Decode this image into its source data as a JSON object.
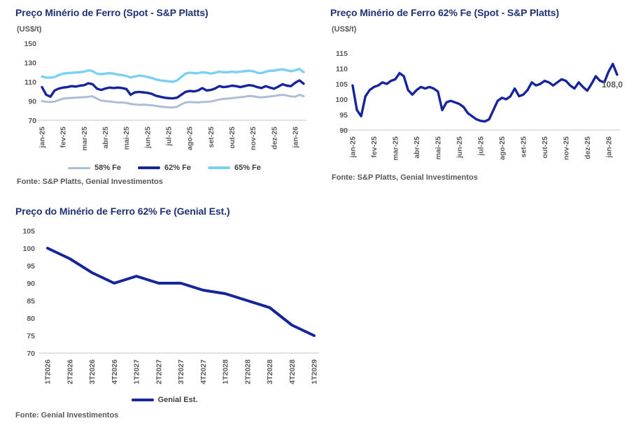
{
  "page": {
    "background": "#ffffff"
  },
  "colors": {
    "title_navy": "#1e3273",
    "axis_text": "#595959",
    "axis_line": "#d9d9d9",
    "series_58fe": "#aebdd6",
    "series_62fe": "#16259a",
    "series_65fe": "#7ed0f2"
  },
  "chart_data": [
    {
      "id": "iron-ore-spot-grades",
      "type": "line",
      "title": "Preço Minério de Ferro (Spot - S&P Platts)",
      "unit": "(US$/t)",
      "source": "Fonte: S&P Platts, Genial Investimentos",
      "ylim": [
        70,
        150
      ],
      "yticks": [
        150,
        130,
        110,
        90,
        70
      ],
      "grid": false,
      "legend_position": "bottom",
      "x_tick_every": 5,
      "categories": [
        "jan-25",
        "fev-25",
        "mar-25",
        "abr-25",
        "mai-25",
        "jun-25",
        "jul-25",
        "ago-25",
        "set-25",
        "out-25",
        "nov-25",
        "dez-25",
        "jan-26"
      ],
      "series": [
        {
          "name": "58% Fe",
          "color": "#aebdd6",
          "width": 3,
          "values": [
            90,
            89.3,
            89,
            89.5,
            91,
            92.5,
            93,
            93.3,
            93.5,
            93.8,
            94,
            94.5,
            95,
            92.5,
            90.5,
            90,
            89.5,
            89,
            88.5,
            88.5,
            88,
            87,
            86.5,
            86,
            86.3,
            86,
            85.5,
            85,
            84.3,
            83.8,
            83.5,
            83.3,
            84,
            86.5,
            88.5,
            89,
            88.7,
            88.5,
            89,
            89.2,
            89.5,
            90.5,
            91.5,
            92.3,
            92.5,
            93,
            93.5,
            94,
            94.5,
            95.3,
            95,
            94.2,
            93.8,
            94.2,
            94.8,
            95.2,
            96,
            96.5,
            95.8,
            94.8,
            94.5,
            96.5,
            95
          ]
        },
        {
          "name": "62% Fe",
          "color": "#16259a",
          "width": 3.4,
          "values": [
            104.5,
            96.5,
            94.5,
            101,
            103,
            104,
            104.5,
            105.5,
            105,
            106,
            106.5,
            108.5,
            107.5,
            103,
            101.5,
            103,
            104,
            103.5,
            104,
            103.5,
            102.5,
            96.5,
            99,
            99.5,
            99,
            98.5,
            97.5,
            95.5,
            94.5,
            93.5,
            93,
            92.8,
            93.5,
            96.5,
            99.5,
            100.5,
            100,
            101,
            103.5,
            101,
            101.5,
            103,
            105.5,
            104.5,
            105,
            106,
            105.5,
            104.5,
            105.5,
            106.5,
            106,
            104.5,
            103.5,
            105.5,
            104,
            102.8,
            105,
            107.5,
            106,
            105.5,
            109,
            111.5,
            108
          ]
        },
        {
          "name": "65% Fe",
          "color": "#7ed0f2",
          "width": 3.4,
          "values": [
            115.5,
            114.5,
            114.3,
            115,
            117,
            118.5,
            119,
            119.3,
            119.8,
            120,
            120.5,
            122,
            121,
            118.5,
            118,
            118.5,
            119,
            118.5,
            117.5,
            117,
            116,
            114.5,
            115.5,
            116.5,
            116,
            115,
            114,
            112.5,
            111.5,
            111,
            110.5,
            110,
            111.5,
            115,
            118.5,
            119.5,
            119,
            119,
            120,
            119.5,
            118.5,
            119.5,
            120.5,
            120,
            120,
            120.5,
            120,
            120.5,
            121,
            121.5,
            121,
            119.5,
            119,
            120.5,
            121.5,
            121.5,
            122.5,
            123,
            122,
            121,
            122,
            123.5,
            120
          ]
        }
      ]
    },
    {
      "id": "iron-ore-62fe-spot",
      "type": "line",
      "title": "Preço Minério de Ferro 62% Fe (Spot - S&P Platts)",
      "unit": "(US$/t)",
      "source": "Fonte: S&P Platts, Genial Investimentos",
      "ylim": [
        90,
        115
      ],
      "yticks": [
        115,
        110,
        105,
        100,
        95,
        90
      ],
      "grid": false,
      "legend_position": "none",
      "x_tick_every": 5,
      "annotation": {
        "text": "108,0"
      },
      "categories": [
        "jan-25",
        "fev-25",
        "mar-25",
        "abr-25",
        "mai-25",
        "jun-25",
        "jul-25",
        "ago-25",
        "set-25",
        "out-25",
        "nov-25",
        "dez-25",
        "jan-26"
      ],
      "series": [
        {
          "name": "62% Fe",
          "color": "#16259a",
          "width": 3.4,
          "values": [
            104.5,
            96.5,
            94.5,
            101,
            103,
            104,
            104.5,
            105.5,
            105,
            106,
            106.5,
            108.5,
            107.5,
            103,
            101.5,
            103,
            104,
            103.5,
            104,
            103.5,
            102.5,
            96.5,
            99,
            99.5,
            99,
            98.5,
            97.5,
            95.5,
            94.5,
            93.5,
            93,
            92.8,
            93.5,
            96.5,
            99.5,
            100.5,
            100,
            101,
            103.5,
            101,
            101.5,
            103,
            105.5,
            104.5,
            105,
            106,
            105.5,
            104.5,
            105.5,
            106.5,
            106,
            104.5,
            103.5,
            105.5,
            104,
            102.8,
            105,
            107.5,
            106,
            105.5,
            109,
            111.5,
            108
          ]
        }
      ]
    },
    {
      "id": "iron-ore-62fe-genial-estimate",
      "type": "line",
      "title": "Preço do Minério de Ferro 62% Fe (Genial Est.)",
      "unit": "",
      "source": "Fonte: Genial Investimentos",
      "ylim": [
        70,
        105
      ],
      "yticks": [
        105,
        100,
        95,
        90,
        85,
        80,
        75,
        70
      ],
      "grid": false,
      "legend_position": "bottom",
      "x_tick_every": 1,
      "categories": [
        "1T2026",
        "2T2026",
        "3T2026",
        "4T2026",
        "1T2027",
        "2T2027",
        "3T2027",
        "4T2027",
        "1T2028",
        "2T2028",
        "3T2028",
        "4T2028",
        "1T2029"
      ],
      "series": [
        {
          "name": "Genial Est.",
          "color": "#16259a",
          "width": 4,
          "values": [
            100,
            97,
            93,
            90,
            92,
            90,
            90,
            88,
            87,
            85,
            83,
            78,
            75
          ]
        }
      ]
    }
  ]
}
